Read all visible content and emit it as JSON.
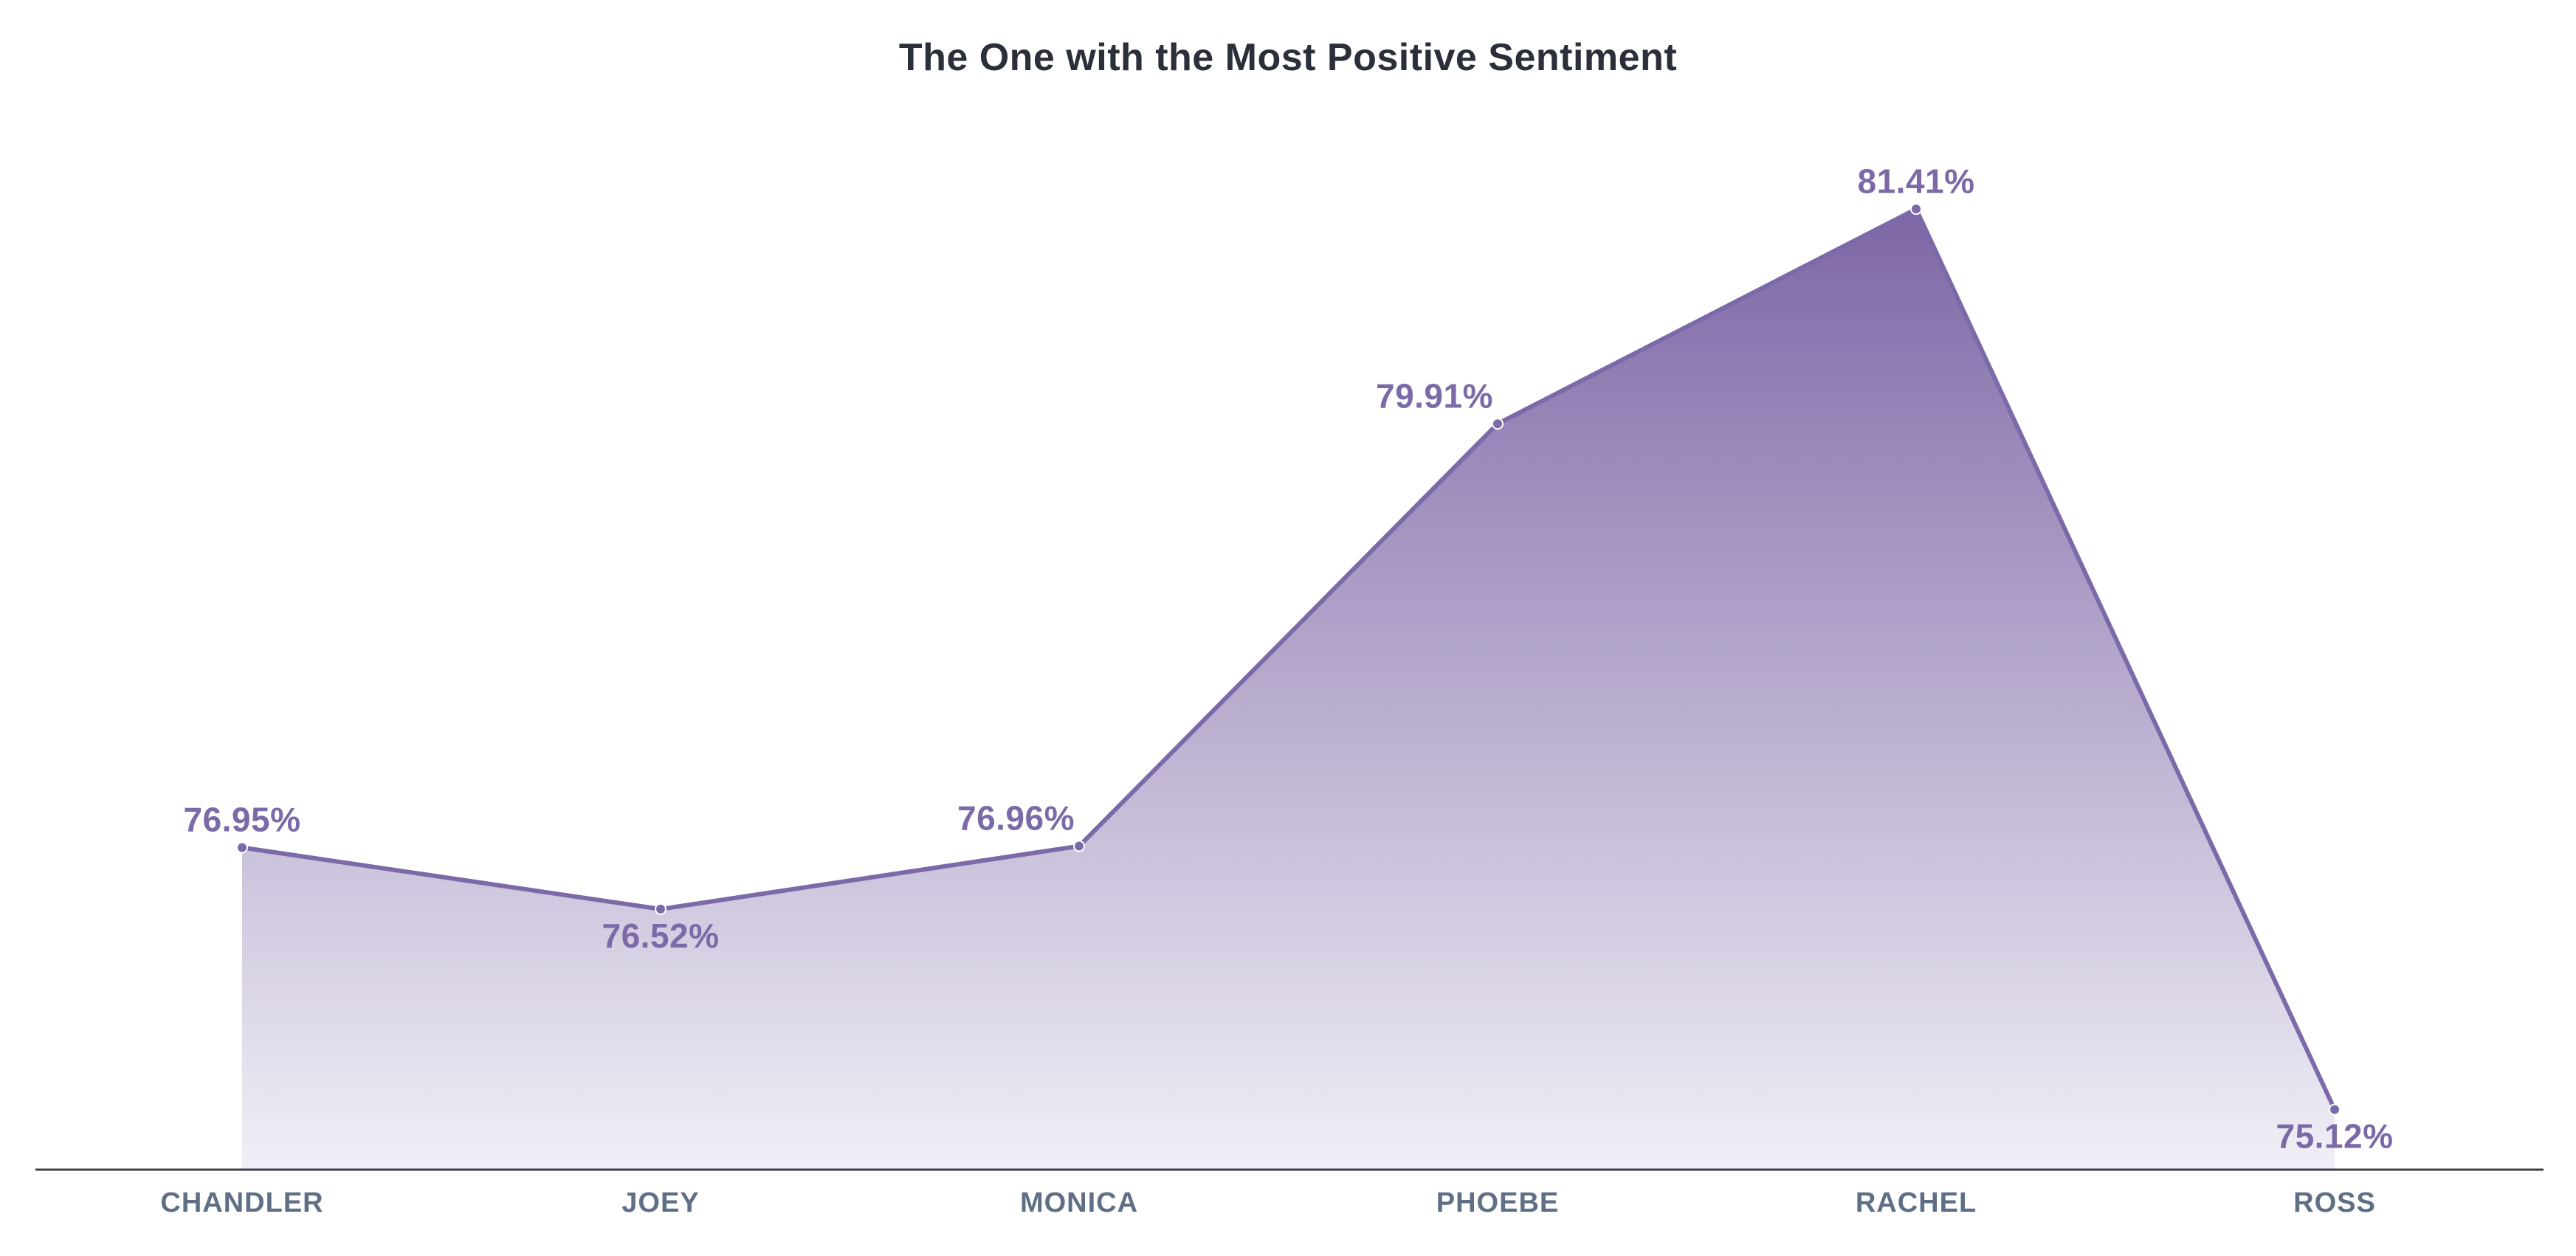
{
  "chart_data": {
    "type": "area",
    "title": "The One with the Most Positive Sentiment",
    "xlabel": "",
    "ylabel": "",
    "categories": [
      "CHANDLER",
      "JOEY",
      "MONICA",
      "PHOEBE",
      "RACHEL",
      "ROSS"
    ],
    "values": [
      76.95,
      76.52,
      76.96,
      79.91,
      81.41,
      75.12
    ],
    "value_labels": [
      "76.95%",
      "76.52%",
      "76.96%",
      "79.91%",
      "81.41%",
      "75.12%"
    ],
    "label_placement": [
      "above",
      "below",
      "above",
      "above",
      "above",
      "below"
    ],
    "ylim": [
      74.7,
      82.2
    ],
    "grid": false,
    "legend": "none",
    "colors": {
      "line": "#7c6aa8",
      "fill_top": "#7d67a6",
      "fill_bottom": "#f1eff6",
      "label": "#7c6aa8",
      "axis": "#3c4048",
      "tick_text": "#5f6f86",
      "title": "#2b2f3a"
    }
  }
}
